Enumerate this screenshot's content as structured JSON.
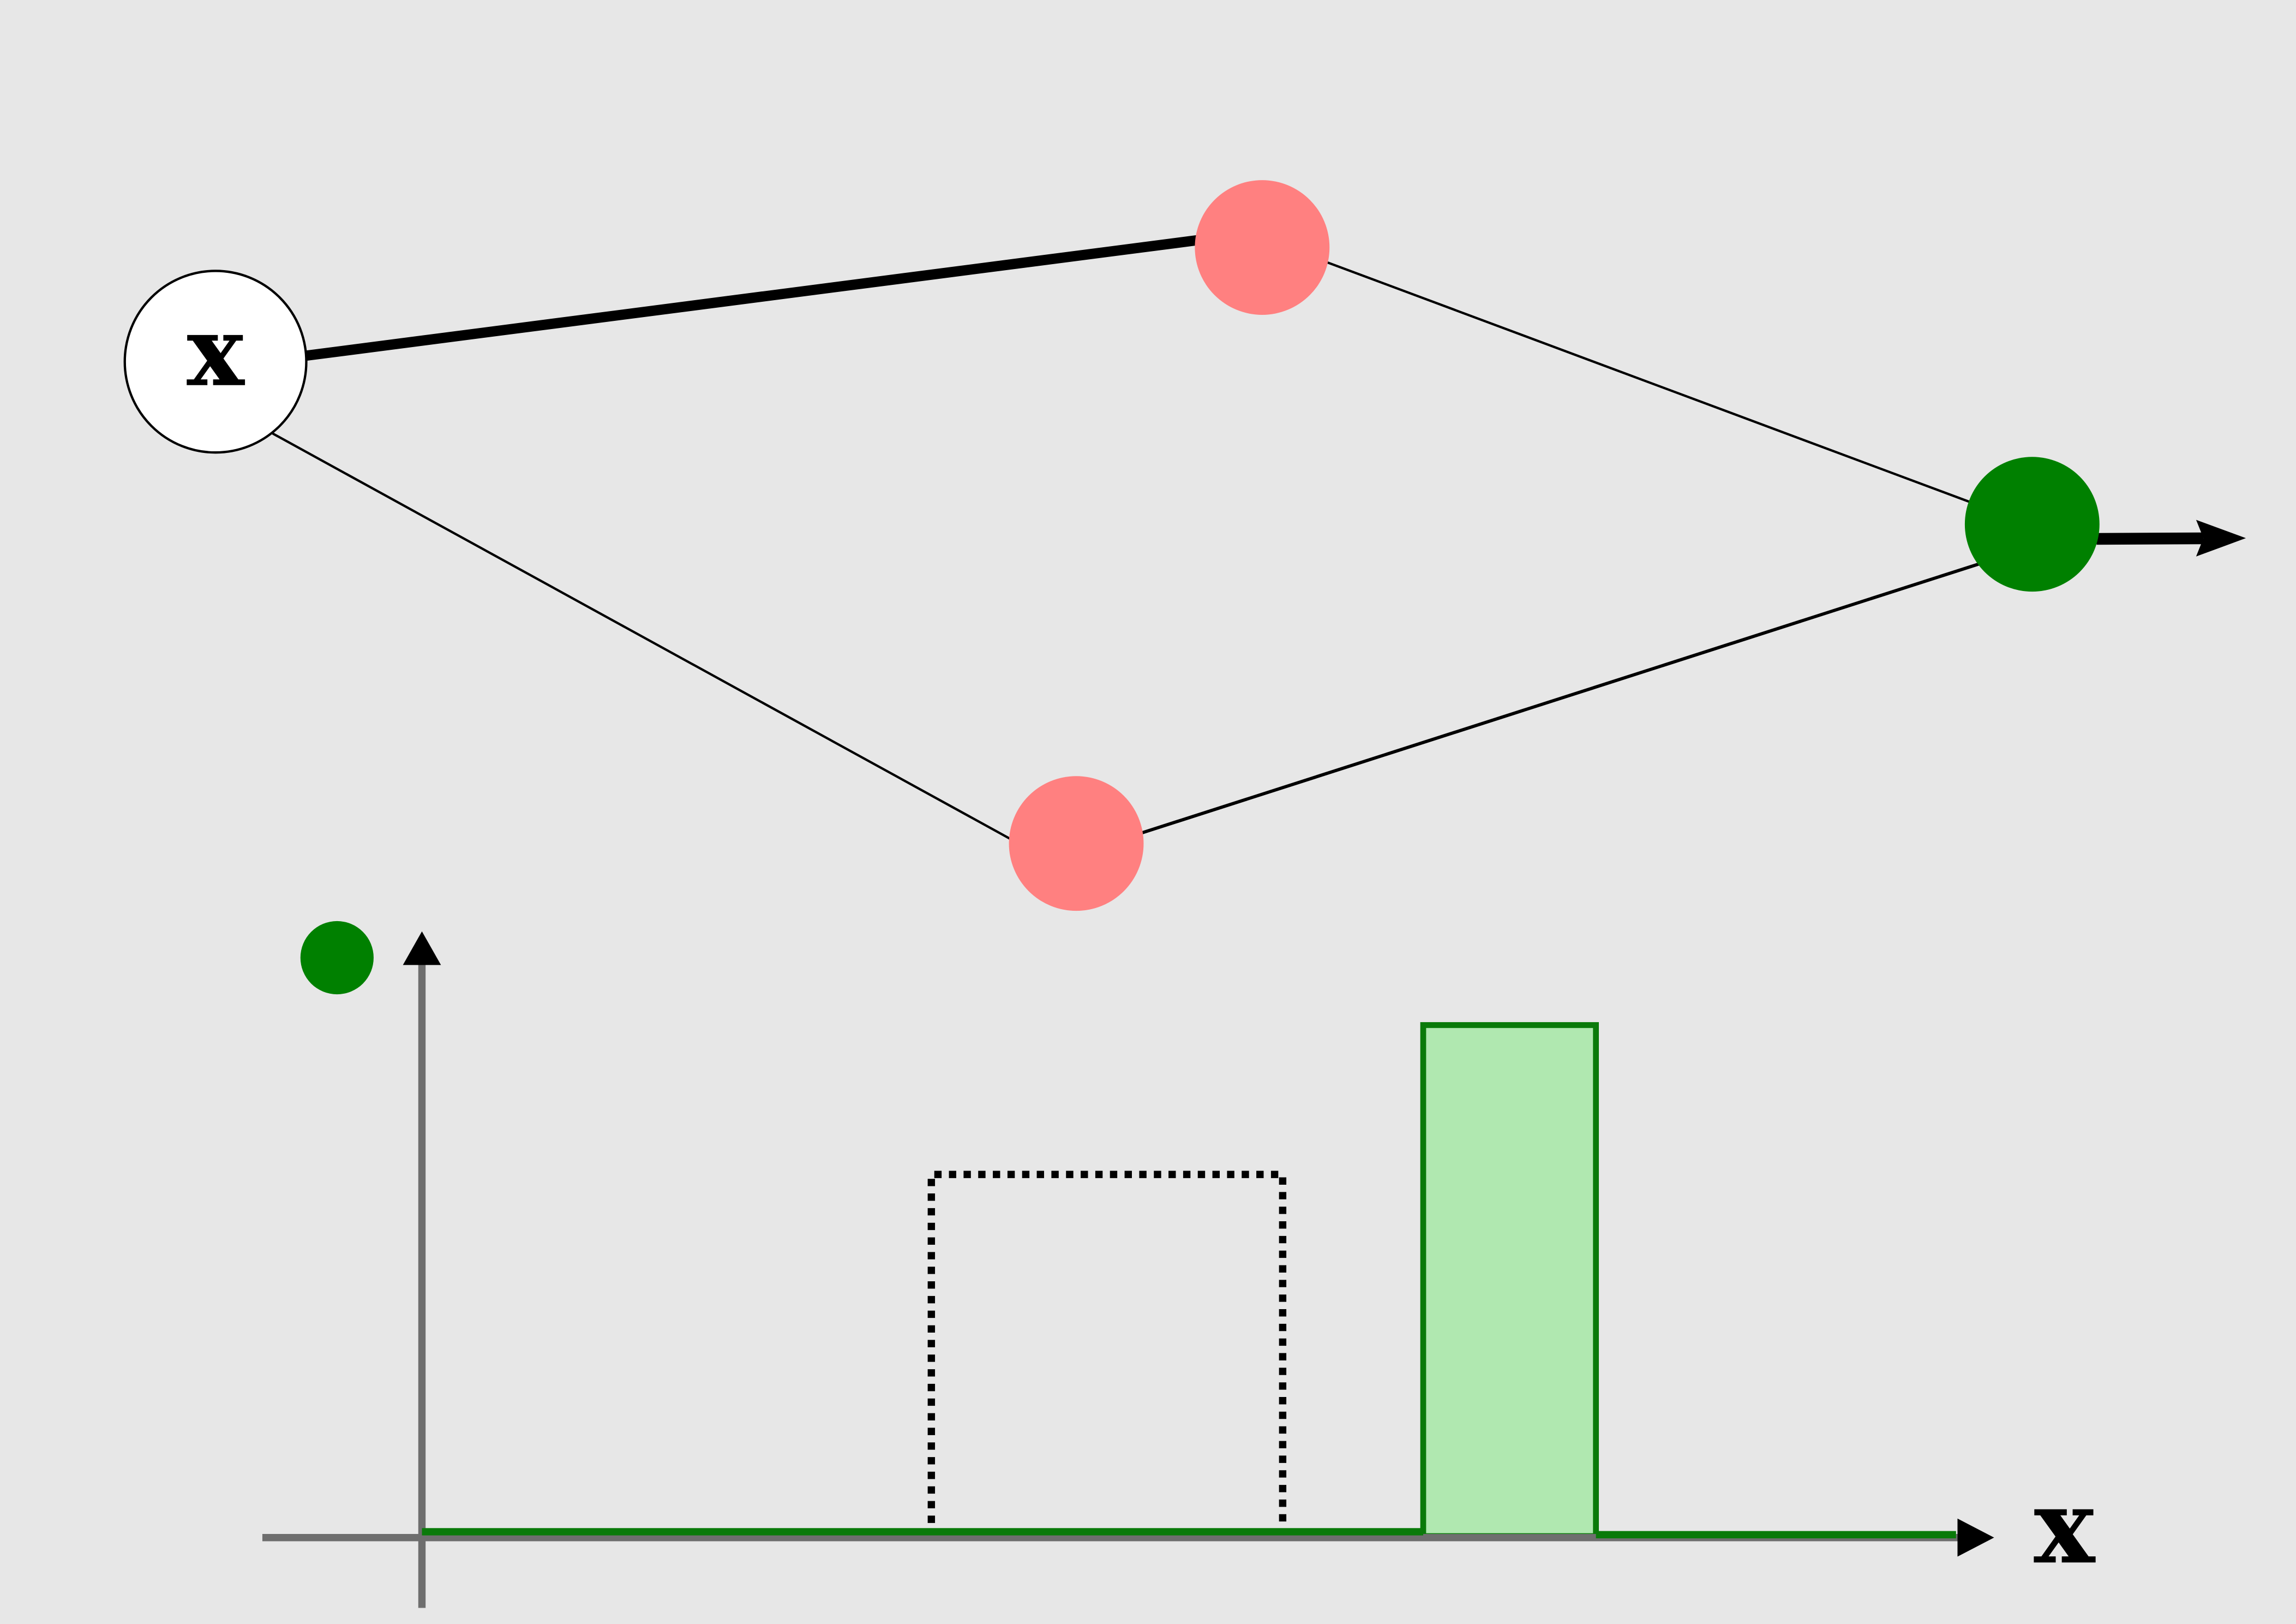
{
  "network": {
    "input_node": {
      "label": "x",
      "fill": "#ffffff",
      "stroke": "#000000"
    },
    "hidden_nodes": [
      {
        "id": "hidden-top",
        "fill": "#ff8080"
      },
      {
        "id": "hidden-bottom",
        "fill": "#ff8080"
      }
    ],
    "output_node": {
      "fill": "#008000"
    },
    "edges": [
      {
        "from": "input",
        "to": "hidden-top",
        "weight": "strong"
      },
      {
        "from": "input",
        "to": "hidden-bottom",
        "weight": "weak"
      },
      {
        "from": "hidden-top",
        "to": "output",
        "weight": "weak"
      },
      {
        "from": "hidden-bottom",
        "to": "output",
        "weight": "weak"
      },
      {
        "from": "output",
        "to": "out",
        "weight": "strong",
        "arrow": true
      }
    ]
  },
  "plot": {
    "legend_marker_color": "#008000",
    "x_axis_label": "x",
    "axis_color": "#6e6e6e",
    "dotted_box_color": "#000000",
    "output_bump": {
      "fill": "#b0e8b0",
      "stroke": "#0a7a0a"
    }
  }
}
